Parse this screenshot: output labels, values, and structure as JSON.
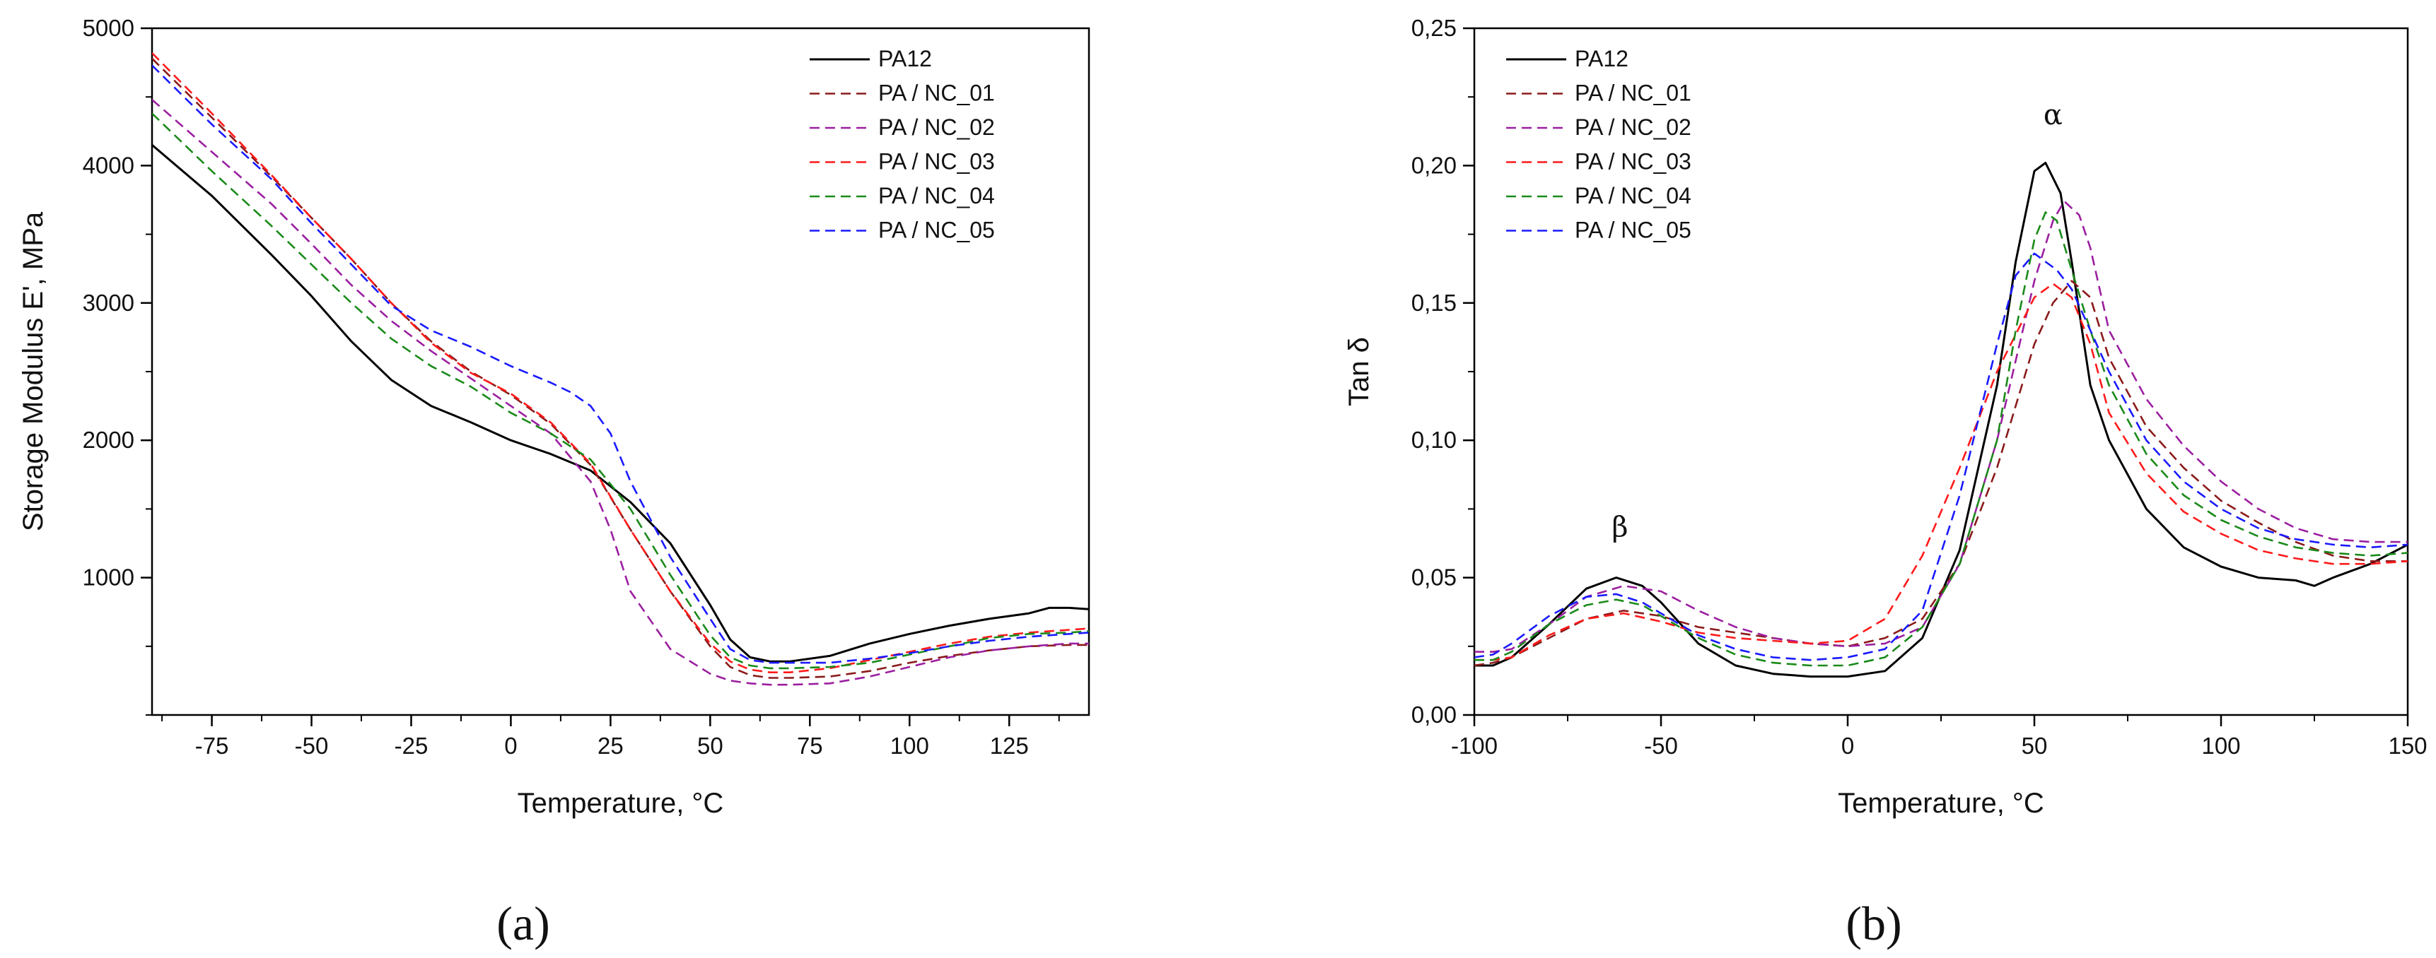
{
  "figure": {
    "panel_a_label": "(a)",
    "panel_b_label": "(b)"
  },
  "colors": {
    "PA12": "#000000",
    "PA / NC_01": "#8b1a1a",
    "PA / NC_02": "#9b1fa0",
    "PA / NC_03": "#ff1a1a",
    "PA / NC_04": "#1a8a1a",
    "PA / NC_05": "#1a1aff"
  },
  "chart_data": [
    {
      "id": "a",
      "type": "line",
      "title": "",
      "xlabel": "Temperature, °C",
      "ylabel": "Storage Modulus E', MPa",
      "xlim": [
        -90,
        145
      ],
      "ylim": [
        0,
        5000
      ],
      "xticks": [
        -75,
        -50,
        -25,
        0,
        25,
        50,
        75,
        100,
        125
      ],
      "xtick_labels": [
        "-75",
        "-50",
        "-25",
        "0",
        "25",
        "50",
        "75",
        "100",
        "125"
      ],
      "yticks": [
        1000,
        2000,
        3000,
        4000,
        5000
      ],
      "ytick_labels": [
        "1000",
        "2000",
        "3000",
        "4000",
        "5000"
      ],
      "legend_position": "top-right",
      "series": [
        {
          "name": "PA12",
          "style": "solid",
          "x": [
            -90,
            -75,
            -60,
            -50,
            -40,
            -30,
            -20,
            -10,
            0,
            10,
            20,
            30,
            40,
            50,
            55,
            60,
            65,
            70,
            80,
            90,
            100,
            110,
            120,
            130,
            135,
            140,
            145
          ],
          "y": [
            4150,
            3780,
            3350,
            3050,
            2720,
            2440,
            2250,
            2130,
            2000,
            1900,
            1780,
            1550,
            1250,
            800,
            550,
            420,
            390,
            390,
            430,
            520,
            590,
            650,
            700,
            740,
            780,
            780,
            770
          ]
        },
        {
          "name": "PA / NC_01",
          "style": "dashed",
          "x": [
            -90,
            -75,
            -60,
            -50,
            -40,
            -30,
            -20,
            -10,
            0,
            10,
            20,
            30,
            40,
            50,
            55,
            60,
            65,
            70,
            80,
            90,
            100,
            110,
            120,
            130,
            140,
            145
          ],
          "y": [
            4780,
            4350,
            3920,
            3620,
            3320,
            3000,
            2720,
            2500,
            2330,
            2120,
            1820,
            1350,
            900,
            500,
            350,
            290,
            270,
            270,
            280,
            320,
            380,
            430,
            470,
            500,
            510,
            510
          ]
        },
        {
          "name": "PA / NC_02",
          "style": "dashed",
          "x": [
            -90,
            -75,
            -60,
            -50,
            -40,
            -30,
            -20,
            -10,
            0,
            10,
            20,
            25,
            30,
            40,
            50,
            55,
            60,
            65,
            70,
            80,
            90,
            100,
            110,
            120,
            130,
            140,
            145
          ],
          "y": [
            4480,
            4100,
            3720,
            3430,
            3130,
            2870,
            2650,
            2450,
            2250,
            2050,
            1700,
            1350,
            900,
            480,
            300,
            250,
            230,
            220,
            220,
            230,
            280,
            350,
            420,
            470,
            500,
            520,
            520
          ]
        },
        {
          "name": "PA / NC_03",
          "style": "dashed",
          "x": [
            -90,
            -75,
            -60,
            -50,
            -40,
            -30,
            -20,
            -10,
            0,
            10,
            20,
            30,
            40,
            50,
            55,
            60,
            65,
            70,
            80,
            90,
            100,
            110,
            120,
            130,
            140,
            145
          ],
          "y": [
            4820,
            4380,
            3930,
            3620,
            3320,
            3000,
            2710,
            2490,
            2340,
            2130,
            1830,
            1350,
            900,
            520,
            390,
            330,
            310,
            310,
            340,
            400,
            460,
            520,
            570,
            600,
            620,
            630
          ]
        },
        {
          "name": "PA / NC_04",
          "style": "dashed",
          "x": [
            -90,
            -75,
            -60,
            -50,
            -40,
            -30,
            -20,
            -10,
            0,
            10,
            20,
            30,
            40,
            50,
            55,
            60,
            65,
            70,
            80,
            90,
            100,
            110,
            120,
            130,
            140,
            145
          ],
          "y": [
            4380,
            3960,
            3560,
            3280,
            3000,
            2740,
            2540,
            2390,
            2200,
            2050,
            1860,
            1500,
            1020,
            580,
            420,
            360,
            340,
            340,
            350,
            380,
            440,
            500,
            560,
            590,
            600,
            610
          ]
        },
        {
          "name": "PA / NC_05",
          "style": "dashed",
          "x": [
            -90,
            -75,
            -60,
            -50,
            -40,
            -30,
            -20,
            -10,
            0,
            10,
            15,
            20,
            25,
            30,
            40,
            50,
            55,
            60,
            65,
            70,
            80,
            90,
            100,
            110,
            120,
            130,
            140,
            145
          ],
          "y": [
            4730,
            4300,
            3900,
            3580,
            3280,
            2980,
            2800,
            2680,
            2540,
            2420,
            2350,
            2250,
            2050,
            1700,
            1150,
            700,
            480,
            400,
            380,
            380,
            380,
            410,
            450,
            500,
            540,
            570,
            590,
            600
          ]
        }
      ]
    },
    {
      "id": "b",
      "type": "line",
      "title": "",
      "xlabel": "Temperature, °C",
      "ylabel": "Tan δ",
      "xlim": [
        -100,
        150
      ],
      "ylim": [
        0,
        0.25
      ],
      "xticks": [
        -100,
        -50,
        0,
        50,
        100,
        150
      ],
      "xtick_labels": [
        "-100",
        "-50",
        "0",
        "50",
        "100",
        "150"
      ],
      "yticks": [
        0,
        0.05,
        0.1,
        0.15,
        0.2,
        0.25
      ],
      "ytick_labels": [
        "0,00",
        "0,05",
        "0,10",
        "0,15",
        "0,20",
        "0,25"
      ],
      "legend_position": "top-left",
      "annotations": [
        {
          "text": "β",
          "x": -61,
          "y": 0.065
        },
        {
          "text": "α",
          "x": 55,
          "y": 0.215
        }
      ],
      "series": [
        {
          "name": "PA12",
          "style": "solid",
          "x": [
            -100,
            -95,
            -90,
            -80,
            -70,
            -62,
            -55,
            -50,
            -40,
            -30,
            -20,
            -10,
            0,
            10,
            20,
            30,
            40,
            45,
            50,
            53,
            57,
            60,
            65,
            70,
            80,
            90,
            100,
            110,
            120,
            125,
            130,
            140,
            150
          ],
          "y": [
            0.018,
            0.018,
            0.021,
            0.033,
            0.046,
            0.05,
            0.047,
            0.041,
            0.026,
            0.018,
            0.015,
            0.014,
            0.014,
            0.016,
            0.028,
            0.06,
            0.12,
            0.165,
            0.198,
            0.201,
            0.19,
            0.165,
            0.12,
            0.1,
            0.075,
            0.061,
            0.054,
            0.05,
            0.049,
            0.047,
            0.05,
            0.055,
            0.062
          ]
        },
        {
          "name": "PA / NC_01",
          "style": "dashed",
          "x": [
            -100,
            -95,
            -90,
            -80,
            -70,
            -60,
            -50,
            -40,
            -30,
            -20,
            -10,
            0,
            10,
            20,
            30,
            40,
            50,
            55,
            60,
            65,
            70,
            80,
            90,
            100,
            110,
            120,
            130,
            140,
            150
          ],
          "y": [
            0.018,
            0.019,
            0.021,
            0.028,
            0.035,
            0.038,
            0.036,
            0.032,
            0.03,
            0.028,
            0.026,
            0.025,
            0.028,
            0.035,
            0.055,
            0.09,
            0.135,
            0.15,
            0.158,
            0.152,
            0.13,
            0.105,
            0.09,
            0.078,
            0.07,
            0.063,
            0.058,
            0.056,
            0.056
          ]
        },
        {
          "name": "PA / NC_02",
          "style": "dashed",
          "x": [
            -100,
            -95,
            -90,
            -80,
            -70,
            -60,
            -50,
            -40,
            -30,
            -20,
            -10,
            0,
            10,
            20,
            30,
            40,
            50,
            55,
            58,
            62,
            65,
            70,
            80,
            90,
            100,
            110,
            120,
            130,
            140,
            150
          ],
          "y": [
            0.023,
            0.023,
            0.024,
            0.033,
            0.043,
            0.047,
            0.045,
            0.038,
            0.032,
            0.028,
            0.026,
            0.025,
            0.026,
            0.032,
            0.055,
            0.1,
            0.158,
            0.18,
            0.187,
            0.182,
            0.17,
            0.14,
            0.115,
            0.098,
            0.085,
            0.075,
            0.068,
            0.064,
            0.063,
            0.063
          ]
        },
        {
          "name": "PA / NC_03",
          "style": "dashed",
          "x": [
            -100,
            -95,
            -90,
            -80,
            -70,
            -60,
            -50,
            -40,
            -30,
            -20,
            -10,
            0,
            10,
            20,
            30,
            40,
            50,
            55,
            60,
            65,
            70,
            80,
            90,
            100,
            110,
            120,
            130,
            140,
            150
          ],
          "y": [
            0.02,
            0.02,
            0.021,
            0.029,
            0.035,
            0.037,
            0.034,
            0.03,
            0.028,
            0.027,
            0.026,
            0.027,
            0.035,
            0.058,
            0.09,
            0.125,
            0.152,
            0.157,
            0.152,
            0.135,
            0.11,
            0.088,
            0.074,
            0.066,
            0.06,
            0.057,
            0.055,
            0.055,
            0.056
          ]
        },
        {
          "name": "PA / NC_04",
          "style": "dashed",
          "x": [
            -100,
            -95,
            -90,
            -80,
            -70,
            -62,
            -55,
            -50,
            -40,
            -30,
            -20,
            -10,
            0,
            10,
            20,
            30,
            40,
            45,
            50,
            53,
            56,
            60,
            65,
            70,
            80,
            90,
            100,
            110,
            120,
            130,
            140,
            150
          ],
          "y": [
            0.02,
            0.02,
            0.023,
            0.033,
            0.04,
            0.042,
            0.04,
            0.036,
            0.028,
            0.022,
            0.019,
            0.018,
            0.018,
            0.021,
            0.032,
            0.055,
            0.1,
            0.14,
            0.173,
            0.183,
            0.18,
            0.162,
            0.14,
            0.12,
            0.095,
            0.08,
            0.071,
            0.065,
            0.061,
            0.059,
            0.058,
            0.059
          ]
        },
        {
          "name": "PA / NC_05",
          "style": "dashed",
          "x": [
            -100,
            -95,
            -90,
            -80,
            -70,
            -62,
            -55,
            -50,
            -40,
            -30,
            -20,
            -10,
            0,
            10,
            20,
            30,
            40,
            45,
            50,
            53,
            56,
            60,
            65,
            70,
            80,
            90,
            100,
            110,
            120,
            130,
            140,
            150
          ],
          "y": [
            0.021,
            0.022,
            0.026,
            0.036,
            0.043,
            0.044,
            0.041,
            0.037,
            0.029,
            0.024,
            0.021,
            0.02,
            0.021,
            0.024,
            0.038,
            0.08,
            0.135,
            0.16,
            0.168,
            0.165,
            0.162,
            0.155,
            0.14,
            0.125,
            0.1,
            0.085,
            0.075,
            0.068,
            0.064,
            0.062,
            0.061,
            0.062
          ]
        }
      ]
    }
  ]
}
